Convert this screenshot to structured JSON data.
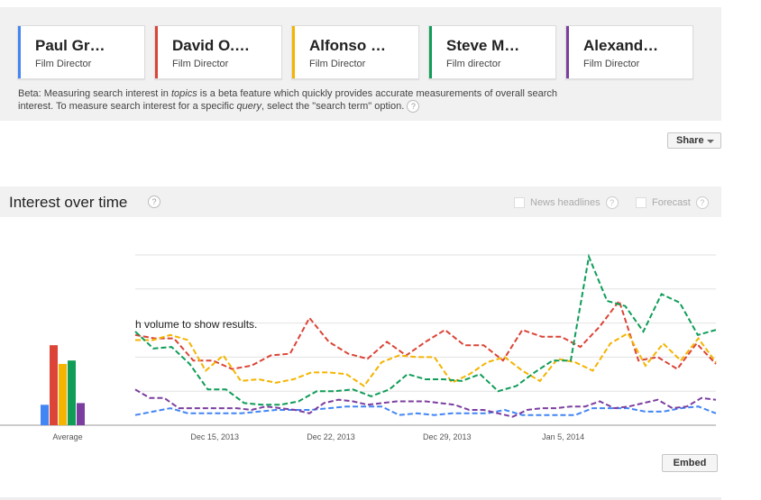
{
  "terms": [
    {
      "name": "Paul Gr…",
      "type": "Film Director",
      "color": "#4285f4"
    },
    {
      "name": "David O.…",
      "type": "Film Director",
      "color": "#db4437"
    },
    {
      "name": "Alfonso …",
      "type": "Film Director",
      "color": "#f4b400"
    },
    {
      "name": "Steve M…",
      "type": "Film director",
      "color": "#0f9d58"
    },
    {
      "name": "Alexand…",
      "type": "Film Director",
      "color": "#7b3ea0"
    }
  ],
  "beta_note": {
    "p1": "Beta: Measuring search interest in ",
    "topics": "topics",
    "p2": " is a beta feature which quickly provides accurate measurements of overall search interest. To measure search interest for a specific ",
    "query": "query",
    "p3": ", select the \"search term\" option.",
    "help": "?"
  },
  "share": {
    "label": "Share"
  },
  "interest_over_time": {
    "title": "Interest over time",
    "help": "?",
    "news_headlines": "News headlines",
    "forecast": "Forecast"
  },
  "embed": {
    "label": "Embed"
  },
  "chart_data": {
    "type": "line",
    "overlay_text": "h volume to show results.",
    "average_label": "Average",
    "x_tick_labels": [
      {
        "label": "Dec 15, 2013",
        "x": 3
      },
      {
        "label": "Dec 22, 2013",
        "x": 10
      },
      {
        "label": "Dec 29, 2013",
        "x": 17
      },
      {
        "label": "Jan 5, 2014",
        "x": 24
      }
    ],
    "y_gridlines": [
      20,
      40,
      60,
      80,
      100
    ],
    "averages": [
      {
        "color": "#4285f4",
        "value": 12
      },
      {
        "color": "#db4437",
        "value": 47
      },
      {
        "color": "#f4b400",
        "value": 36
      },
      {
        "color": "#0f9d58",
        "value": 38
      },
      {
        "color": "#7b3ea0",
        "value": 13
      }
    ],
    "series": [
      {
        "color": "#4285f4",
        "values": [
          6,
          8,
          10,
          7,
          7,
          7,
          7,
          8,
          9,
          9,
          9,
          10,
          11,
          11,
          11,
          6,
          7,
          6,
          7,
          7,
          7,
          9,
          6,
          6,
          6,
          6,
          10,
          10,
          10,
          8,
          8,
          10,
          11,
          7
        ]
      },
      {
        "color": "#db4437",
        "values": [
          53,
          51,
          51,
          38,
          38,
          33,
          35,
          41,
          42,
          63,
          49,
          42,
          39,
          49,
          41,
          49,
          56,
          47,
          47,
          38,
          56,
          52,
          52,
          46,
          58,
          73,
          38,
          40,
          33,
          48,
          36
        ]
      },
      {
        "color": "#f4b400",
        "values": [
          50,
          50,
          53,
          50,
          32,
          41,
          26,
          27,
          25,
          27,
          31,
          31,
          30,
          23,
          37,
          41,
          40,
          40,
          25,
          30,
          37,
          40,
          32,
          26,
          39,
          37,
          32,
          48,
          54,
          35,
          48,
          38,
          51,
          37
        ]
      },
      {
        "color": "#0f9d58",
        "values": [
          55,
          45,
          46,
          36,
          21,
          21,
          13,
          12,
          12,
          14,
          20,
          20,
          21,
          17,
          21,
          30,
          27,
          27,
          26,
          30,
          20,
          23,
          31,
          38,
          38,
          99,
          73,
          70,
          55,
          77,
          72,
          53,
          56
        ]
      },
      {
        "color": "#7b3ea0",
        "values": [
          21,
          16,
          16,
          10,
          10,
          10,
          10,
          10,
          9,
          11,
          10,
          9,
          7,
          13,
          15,
          14,
          12,
          13,
          14,
          14,
          14,
          13,
          12,
          9,
          9,
          7,
          5,
          9,
          10,
          10,
          11,
          11,
          14,
          10,
          11,
          13,
          15,
          10,
          11,
          16,
          15
        ]
      }
    ]
  }
}
